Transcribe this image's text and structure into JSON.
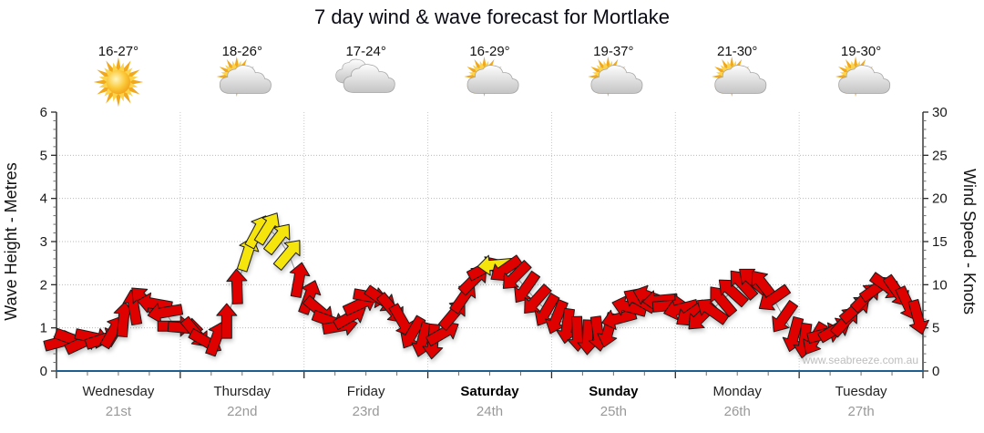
{
  "title": "7 day wind & wave forecast for Mortlake",
  "watermark": "www.seabreeze.com.au",
  "colors": {
    "arrow_red": "#DF0404",
    "arrow_yellow": "#F6E409",
    "x_axis_blue": "#1F5F8F",
    "grid_gray": "#BFBFBF",
    "date_gray": "#999999"
  },
  "chart_data": {
    "type": "wind-arrows",
    "title": "7 day wind & wave forecast for Mortlake",
    "days": [
      {
        "name": "Wednesday",
        "date": "21st",
        "temp": "16-27°",
        "icon": "sunny",
        "weekend": false
      },
      {
        "name": "Thursday",
        "date": "22nd",
        "temp": "18-26°",
        "icon": "sun-cloud",
        "weekend": false
      },
      {
        "name": "Friday",
        "date": "23rd",
        "temp": "17-24°",
        "icon": "cloudy",
        "weekend": false
      },
      {
        "name": "Saturday",
        "date": "24th",
        "temp": "16-29°",
        "icon": "sun-cloud",
        "weekend": true
      },
      {
        "name": "Sunday",
        "date": "25th",
        "temp": "19-37°",
        "icon": "sun-cloud",
        "weekend": true
      },
      {
        "name": "Monday",
        "date": "26th",
        "temp": "21-30°",
        "icon": "sun-cloud",
        "weekend": false
      },
      {
        "name": "Tuesday",
        "date": "27th",
        "temp": "19-30°",
        "icon": "sun-cloud",
        "weekend": false
      }
    ],
    "y_left": {
      "label": "Wave Height - Metres",
      "min": 0,
      "max": 6,
      "ticks": [
        0,
        1,
        2,
        3,
        4,
        5,
        6
      ]
    },
    "y_right": {
      "label": "Wind Speed - Knots",
      "min": 0,
      "max": 30,
      "ticks": [
        0,
        5,
        10,
        15,
        20,
        25,
        30
      ]
    },
    "arrows": {
      "format": "[day_fraction_t_0to7, wind_knots, point_direction_deg_ccw_from_east, is_yellow]",
      "points": [
        [
          0.042,
          3.4,
          15,
          0
        ],
        [
          0.125,
          3.7,
          -20,
          0
        ],
        [
          0.208,
          3.3,
          25,
          0
        ],
        [
          0.292,
          3.9,
          -12,
          0
        ],
        [
          0.375,
          3.7,
          18,
          0
        ],
        [
          0.458,
          4.6,
          60,
          0
        ],
        [
          0.542,
          6.0,
          85,
          0
        ],
        [
          0.625,
          7.4,
          100,
          0
        ],
        [
          0.708,
          8.2,
          135,
          0
        ],
        [
          0.792,
          7.8,
          170,
          0
        ],
        [
          0.875,
          6.8,
          190,
          0
        ],
        [
          0.958,
          5.2,
          0,
          0
        ],
        [
          1.042,
          5.0,
          -5,
          0
        ],
        [
          1.125,
          4.4,
          -50,
          0
        ],
        [
          1.208,
          3.4,
          -30,
          0
        ],
        [
          1.292,
          3.8,
          70,
          0
        ],
        [
          1.375,
          5.8,
          90,
          0
        ],
        [
          1.458,
          9.8,
          92,
          0
        ],
        [
          1.542,
          13.6,
          72,
          1
        ],
        [
          1.625,
          16.2,
          62,
          1
        ],
        [
          1.708,
          16.6,
          58,
          1
        ],
        [
          1.792,
          15.4,
          52,
          1
        ],
        [
          1.875,
          13.6,
          50,
          1
        ],
        [
          1.958,
          10.6,
          80,
          0
        ],
        [
          2.042,
          8.6,
          70,
          0
        ],
        [
          2.125,
          7.0,
          -40,
          0
        ],
        [
          2.208,
          5.8,
          -20,
          0
        ],
        [
          2.292,
          5.2,
          10,
          0
        ],
        [
          2.375,
          6.3,
          30,
          0
        ],
        [
          2.458,
          7.8,
          25,
          0
        ],
        [
          2.542,
          8.6,
          -10,
          0
        ],
        [
          2.625,
          8.3,
          -35,
          0
        ],
        [
          2.708,
          7.2,
          -50,
          0
        ],
        [
          2.792,
          5.8,
          -60,
          0
        ],
        [
          2.875,
          4.4,
          -120,
          0
        ],
        [
          2.958,
          3.6,
          -105,
          0
        ],
        [
          3.042,
          3.4,
          -95,
          0
        ],
        [
          3.125,
          4.4,
          30,
          0
        ],
        [
          3.208,
          6.6,
          50,
          0
        ],
        [
          3.292,
          8.6,
          55,
          0
        ],
        [
          3.375,
          10.6,
          45,
          0
        ],
        [
          3.458,
          11.9,
          28,
          0
        ],
        [
          3.542,
          12.3,
          185,
          1
        ],
        [
          3.625,
          11.8,
          215,
          0
        ],
        [
          3.708,
          11.0,
          225,
          0
        ],
        [
          3.792,
          9.6,
          235,
          0
        ],
        [
          3.875,
          8.2,
          228,
          0
        ],
        [
          3.958,
          7.0,
          240,
          0
        ],
        [
          4.042,
          6.2,
          248,
          0
        ],
        [
          4.125,
          5.2,
          262,
          0
        ],
        [
          4.208,
          4.3,
          272,
          0
        ],
        [
          4.292,
          3.9,
          268,
          0
        ],
        [
          4.375,
          4.3,
          278,
          0
        ],
        [
          4.458,
          4.7,
          255,
          0
        ],
        [
          4.542,
          6.1,
          195,
          0
        ],
        [
          4.625,
          7.4,
          165,
          0
        ],
        [
          4.708,
          8.2,
          150,
          0
        ],
        [
          4.792,
          8.6,
          160,
          0
        ],
        [
          4.875,
          8.2,
          185,
          0
        ],
        [
          4.958,
          7.6,
          5,
          0
        ],
        [
          5.042,
          7.2,
          195,
          0
        ],
        [
          5.125,
          6.6,
          215,
          0
        ],
        [
          5.208,
          6.3,
          225,
          0
        ],
        [
          5.292,
          7.0,
          145,
          0
        ],
        [
          5.375,
          8.2,
          130,
          0
        ],
        [
          5.458,
          9.2,
          138,
          0
        ],
        [
          5.542,
          10.1,
          132,
          0
        ],
        [
          5.625,
          10.5,
          140,
          0
        ],
        [
          5.708,
          10.0,
          128,
          0
        ],
        [
          5.792,
          8.4,
          215,
          0
        ],
        [
          5.875,
          6.2,
          235,
          0
        ],
        [
          5.958,
          4.2,
          255,
          0
        ],
        [
          6.042,
          3.5,
          262,
          0
        ],
        [
          6.125,
          3.7,
          240,
          0
        ],
        [
          6.208,
          4.3,
          15,
          0
        ],
        [
          6.292,
          4.8,
          30,
          0
        ],
        [
          6.375,
          5.8,
          48,
          0
        ],
        [
          6.458,
          7.2,
          40,
          0
        ],
        [
          6.542,
          8.6,
          45,
          0
        ],
        [
          6.625,
          9.6,
          35,
          0
        ],
        [
          6.708,
          9.8,
          -35,
          0
        ],
        [
          6.792,
          9.2,
          -55,
          0
        ],
        [
          6.875,
          7.8,
          -65,
          0
        ],
        [
          6.958,
          6.2,
          -75,
          0
        ]
      ]
    }
  }
}
